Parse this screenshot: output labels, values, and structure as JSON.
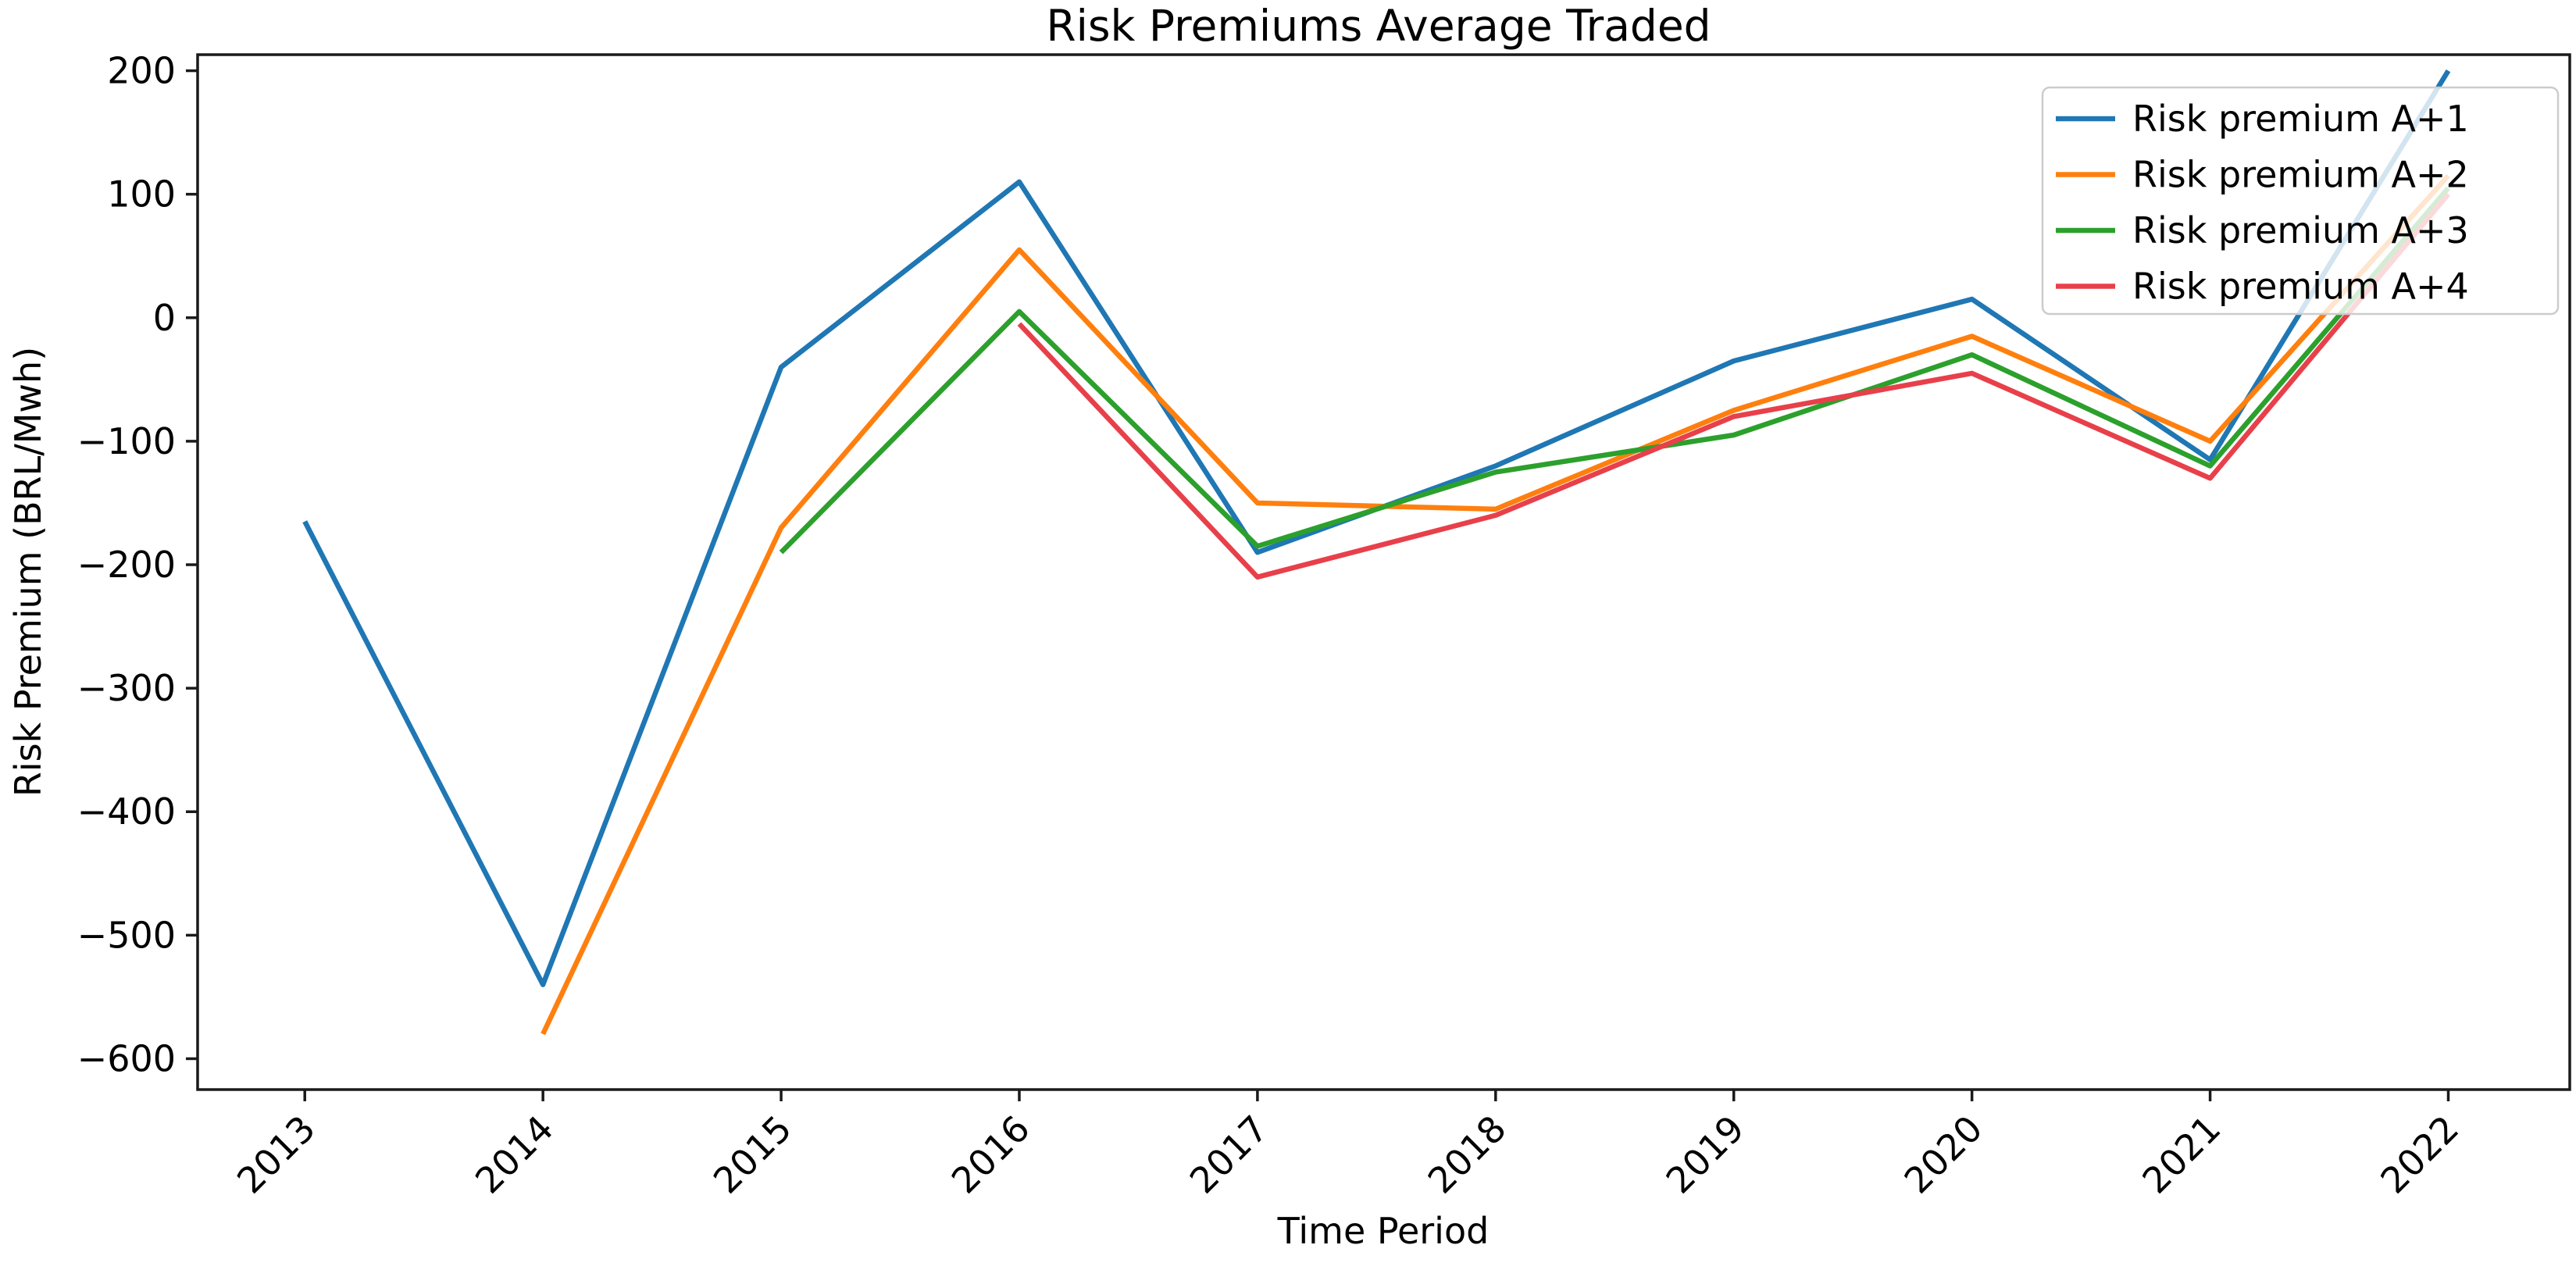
{
  "figure": {
    "background": "#ffffff"
  },
  "chart_data": {
    "type": "line",
    "title": "Risk Premiums Average Traded",
    "xlabel": "Time Period",
    "ylabel": "Risk Premium (BRL/Mwh)",
    "x_ticks": [
      2013,
      2014,
      2015,
      2016,
      2017,
      2018,
      2019,
      2020,
      2021,
      2022
    ],
    "y_ticks": [
      200,
      100,
      0,
      -100,
      -200,
      -300,
      -400,
      -500,
      -600
    ],
    "xlim": [
      2012.55,
      2022.51
    ],
    "ylim": [
      -625,
      213
    ],
    "grid": false,
    "axis_color": "#1a1a1a",
    "legend": {
      "position": "upper right",
      "entries": [
        "Risk premium A+1",
        "Risk premium A+2",
        "Risk premium A+3",
        "Risk premium A+4"
      ]
    },
    "series": [
      {
        "name": "Risk premium A+1",
        "color": "#1f77b4",
        "x": [
          2013,
          2014,
          2015,
          2016,
          2017,
          2018,
          2019,
          2020,
          2021,
          2022
        ],
        "values": [
          -165,
          -540,
          -40,
          110,
          -190,
          -120,
          -35,
          15,
          -115,
          200
        ]
      },
      {
        "name": "Risk premium A+2",
        "color": "#ff7f0e",
        "x": [
          2014,
          2015,
          2016,
          2017,
          2018,
          2019,
          2020,
          2021,
          2022
        ],
        "values": [
          -580,
          -170,
          55,
          -150,
          -155,
          -75,
          -15,
          -100,
          115
        ]
      },
      {
        "name": "Risk premium A+3",
        "color": "#2ca02c",
        "x": [
          2015,
          2016,
          2017,
          2018,
          2019,
          2020,
          2021,
          2022
        ],
        "values": [
          -190,
          5,
          -185,
          -125,
          -95,
          -30,
          -120,
          105
        ]
      },
      {
        "name": "Risk premium A+4",
        "color": "#e8404a",
        "x": [
          2016,
          2017,
          2018,
          2019,
          2020,
          2021,
          2022
        ],
        "values": [
          -5,
          -210,
          -160,
          -80,
          -45,
          -130,
          100
        ]
      }
    ]
  }
}
